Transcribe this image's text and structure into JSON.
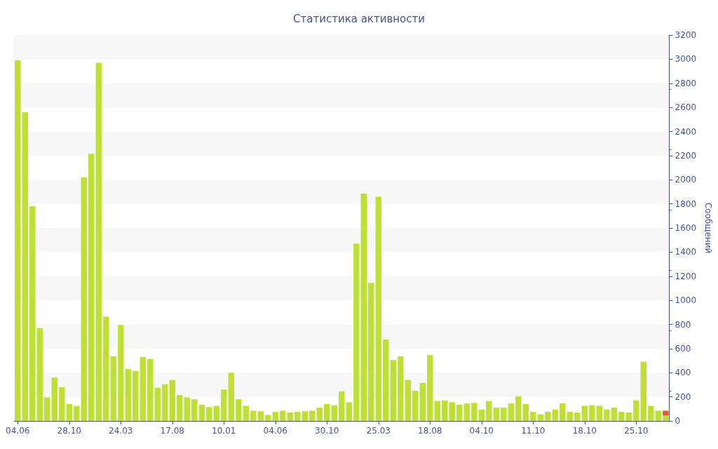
{
  "chart_data": {
    "type": "bar",
    "title": "Статистика активности",
    "ylabel": "Сообщений",
    "categories": [
      "04.06",
      null,
      null,
      null,
      null,
      null,
      null,
      "28.10",
      null,
      null,
      null,
      null,
      null,
      null,
      "24.03",
      null,
      null,
      null,
      null,
      null,
      null,
      "17.08",
      null,
      null,
      null,
      null,
      null,
      null,
      "10.01",
      null,
      null,
      null,
      null,
      null,
      null,
      "04.06",
      null,
      null,
      null,
      null,
      null,
      null,
      "30.10",
      null,
      null,
      null,
      null,
      null,
      null,
      "25.03",
      null,
      null,
      null,
      null,
      null,
      null,
      "18.08",
      null,
      null,
      null,
      null,
      null,
      null,
      "04.10",
      null,
      null,
      null,
      null,
      null,
      null,
      "11.10",
      null,
      null,
      null,
      null,
      null,
      null,
      "18.10",
      null,
      null,
      null,
      null,
      null,
      null,
      "25.10",
      null,
      null,
      null,
      null
    ],
    "series": [
      {
        "color": "#bde032",
        "values": [
          2990,
          2560,
          1780,
          770,
          195,
          360,
          280,
          140,
          125,
          2020,
          2215,
          2970,
          865,
          535,
          795,
          430,
          415,
          530,
          515,
          275,
          305,
          340,
          215,
          195,
          180,
          135,
          115,
          125,
          260,
          400,
          180,
          125,
          85,
          80,
          50,
          75,
          85,
          70,
          75,
          80,
          85,
          110,
          140,
          130,
          245,
          155,
          1470,
          1885,
          1145,
          1860,
          675,
          505,
          535,
          340,
          250,
          315,
          545,
          165,
          170,
          155,
          135,
          145,
          150,
          95,
          165,
          110,
          110,
          145,
          205,
          140,
          75,
          55,
          75,
          95,
          145,
          75,
          70,
          125,
          130,
          125,
          95,
          110,
          75,
          70,
          170,
          490,
          125,
          85,
          45
        ]
      },
      {
        "color": "#e8552a",
        "values": [
          null,
          null,
          null,
          null,
          null,
          null,
          null,
          null,
          null,
          null,
          null,
          null,
          null,
          null,
          null,
          null,
          null,
          null,
          null,
          null,
          null,
          null,
          null,
          null,
          null,
          null,
          null,
          null,
          null,
          null,
          null,
          null,
          null,
          null,
          null,
          null,
          null,
          null,
          null,
          null,
          null,
          null,
          null,
          null,
          null,
          null,
          null,
          null,
          null,
          null,
          null,
          null,
          null,
          null,
          null,
          null,
          null,
          null,
          null,
          null,
          null,
          null,
          null,
          null,
          null,
          null,
          null,
          null,
          null,
          null,
          null,
          null,
          null,
          null,
          null,
          null,
          null,
          null,
          null,
          null,
          null,
          null,
          null,
          null,
          null,
          null,
          null,
          null,
          40
        ]
      }
    ],
    "stacked": true,
    "ylim": [
      0,
      3200
    ],
    "yticks": [
      0,
      200,
      400,
      600,
      800,
      1000,
      1200,
      1400,
      1600,
      1800,
      2000,
      2200,
      2400,
      2600,
      2800,
      3000,
      3200
    ],
    "grid": false
  }
}
